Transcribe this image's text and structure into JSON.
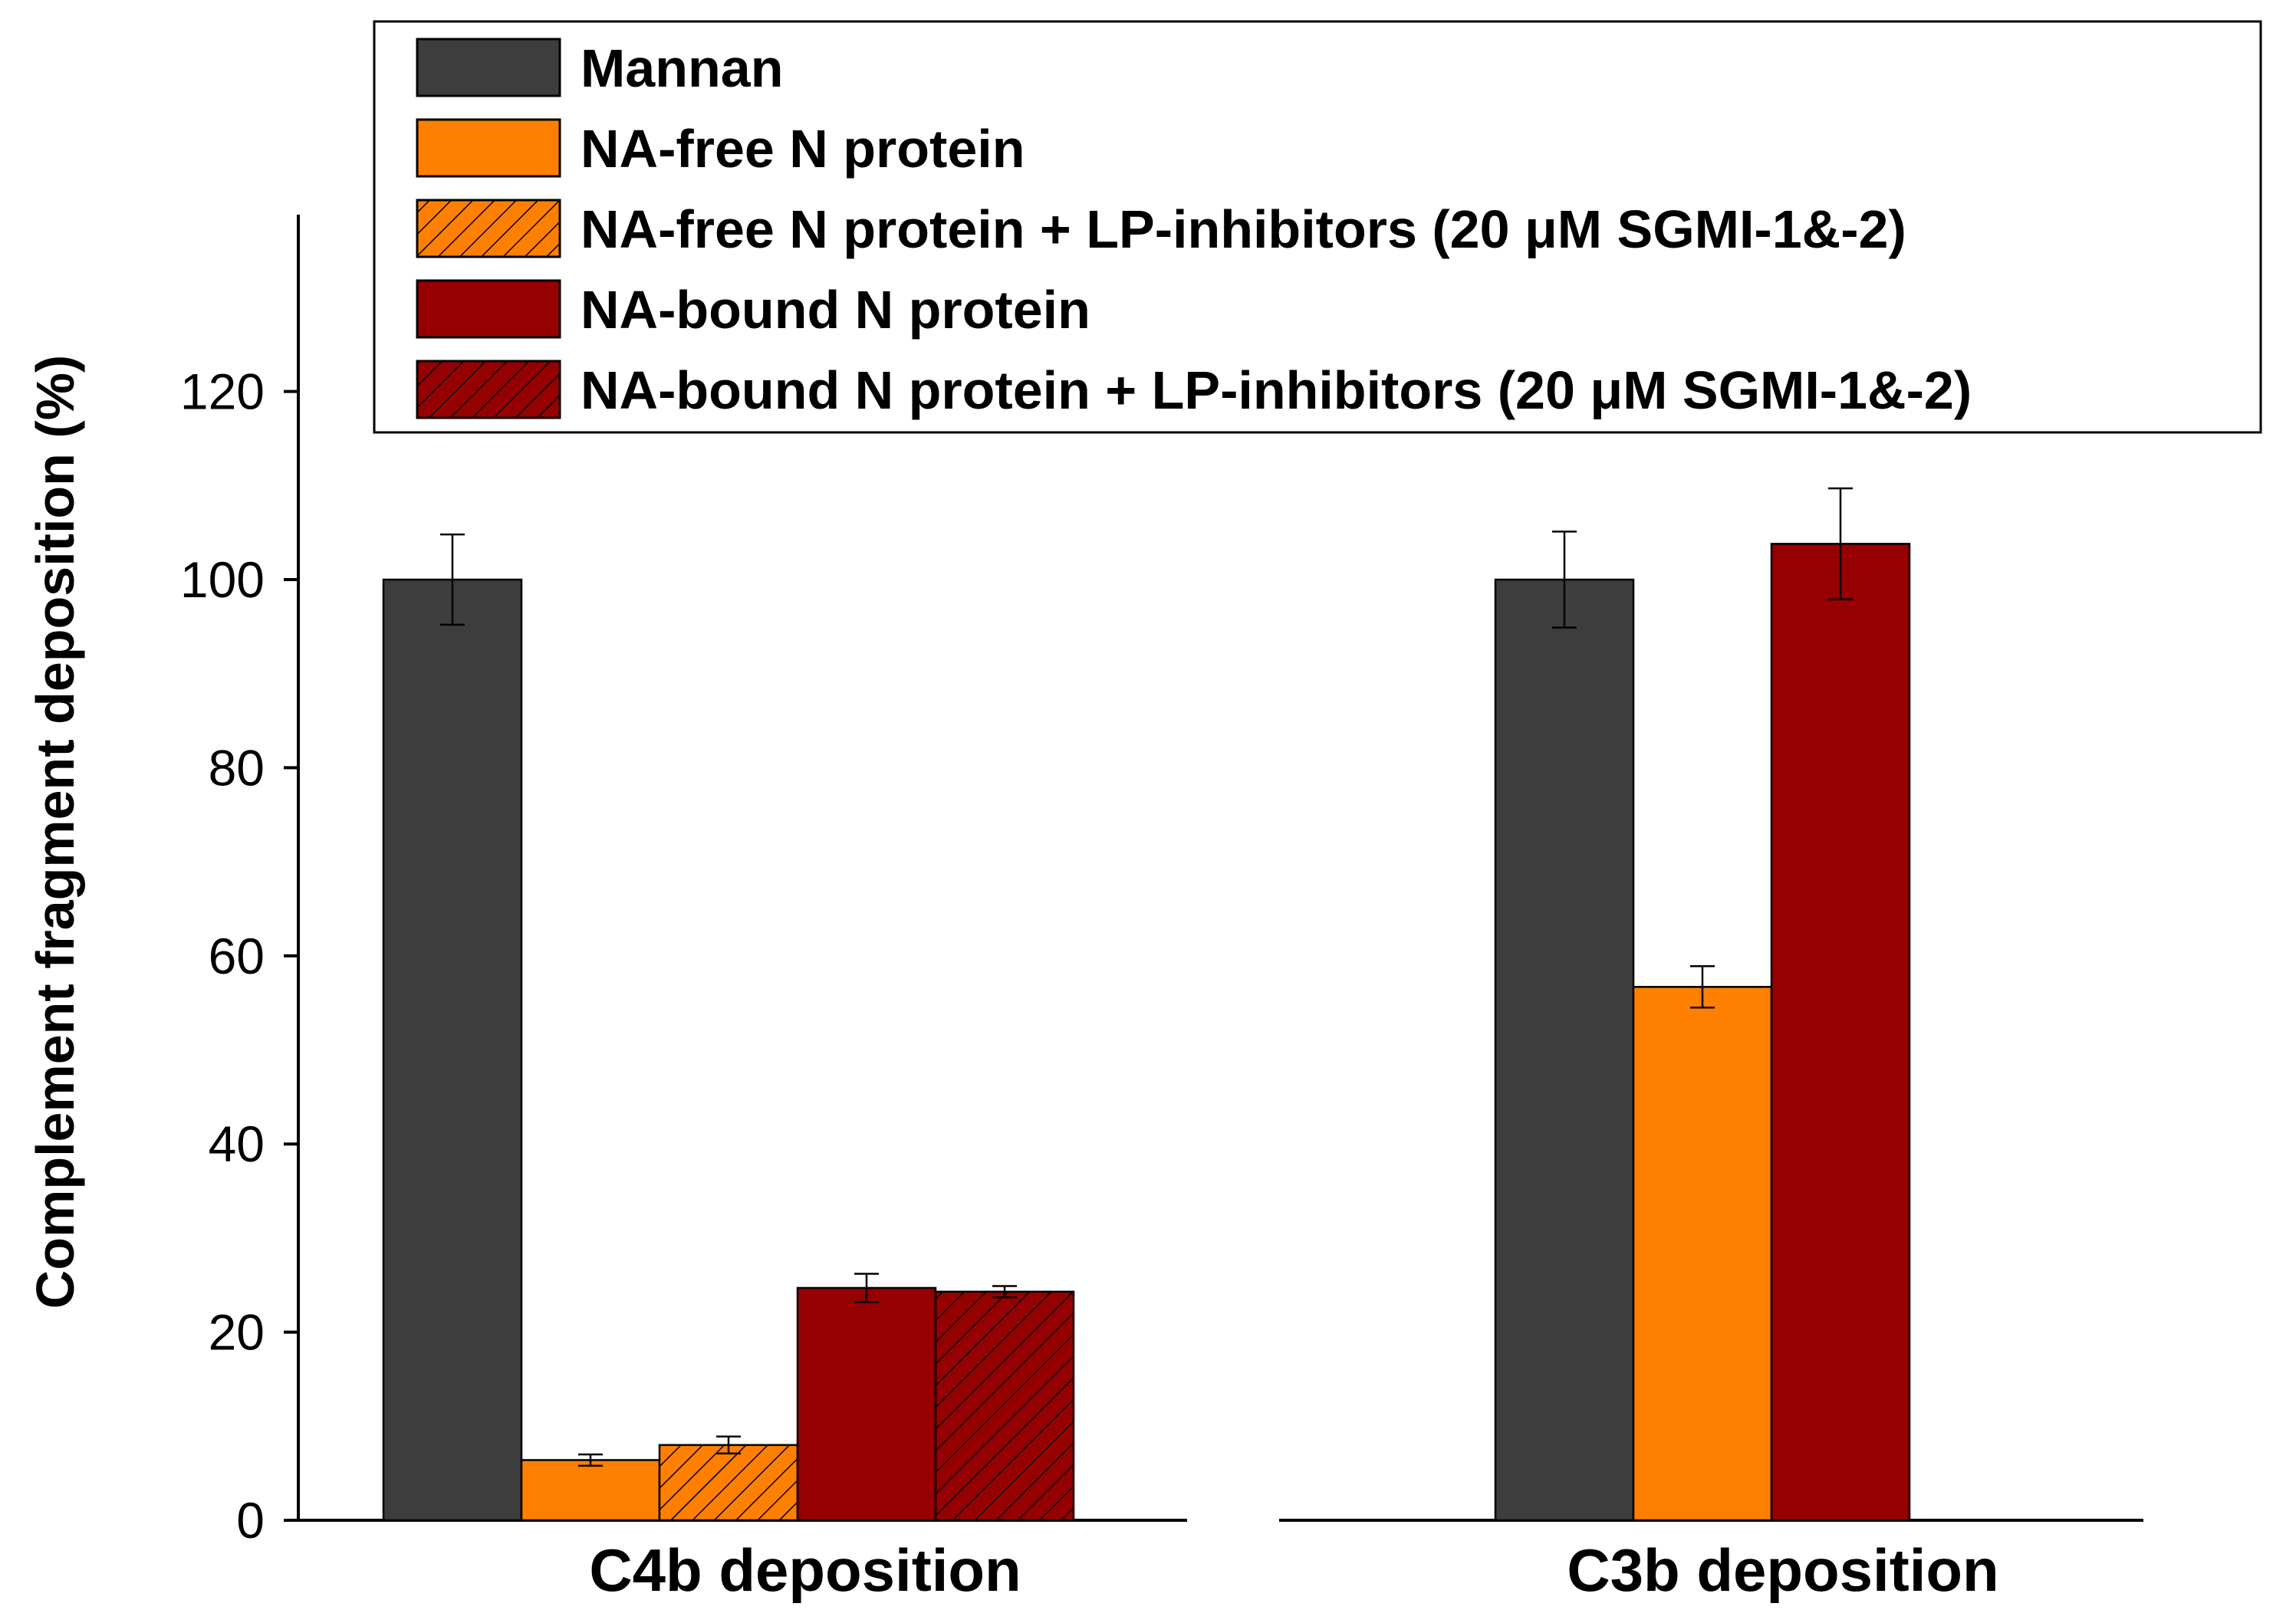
{
  "chart_data": {
    "type": "bar",
    "title": "",
    "xlabel": "",
    "ylabel": "Complement fragment deposition (%)",
    "ylim": [
      0,
      140
    ],
    "yticks": [
      0,
      20,
      40,
      60,
      80,
      100,
      120
    ],
    "grid": false,
    "legend_position": "top",
    "categories": [
      "C4b deposition",
      "C3b deposition"
    ],
    "series": [
      {
        "name": "Mannan",
        "color": "#3d3d3d",
        "hatch": false,
        "values": [
          100,
          100
        ],
        "errors": [
          4.8,
          5.1
        ]
      },
      {
        "name": "NA-free N protein",
        "color": "#ff8000",
        "hatch": false,
        "values": [
          6.4,
          56.7
        ],
        "errors": [
          0.6,
          2.2
        ]
      },
      {
        "name": "NA-free N protein + LP-inhibitors (20 μM SGMI-1&-2)",
        "color": "#ff8000",
        "hatch": true,
        "values": [
          8.0,
          null
        ],
        "errors": [
          0.9,
          null
        ]
      },
      {
        "name": "NA-bound N protein",
        "color": "#960000",
        "hatch": false,
        "values": [
          24.7,
          103.8
        ],
        "errors": [
          1.5,
          5.9
        ]
      },
      {
        "name": "NA-bound N protein + LP-inhibitors (20 μM SGMI-1&-2)",
        "color": "#960000",
        "hatch": true,
        "values": [
          24.3,
          null
        ],
        "errors": [
          0.6,
          null
        ]
      }
    ]
  }
}
